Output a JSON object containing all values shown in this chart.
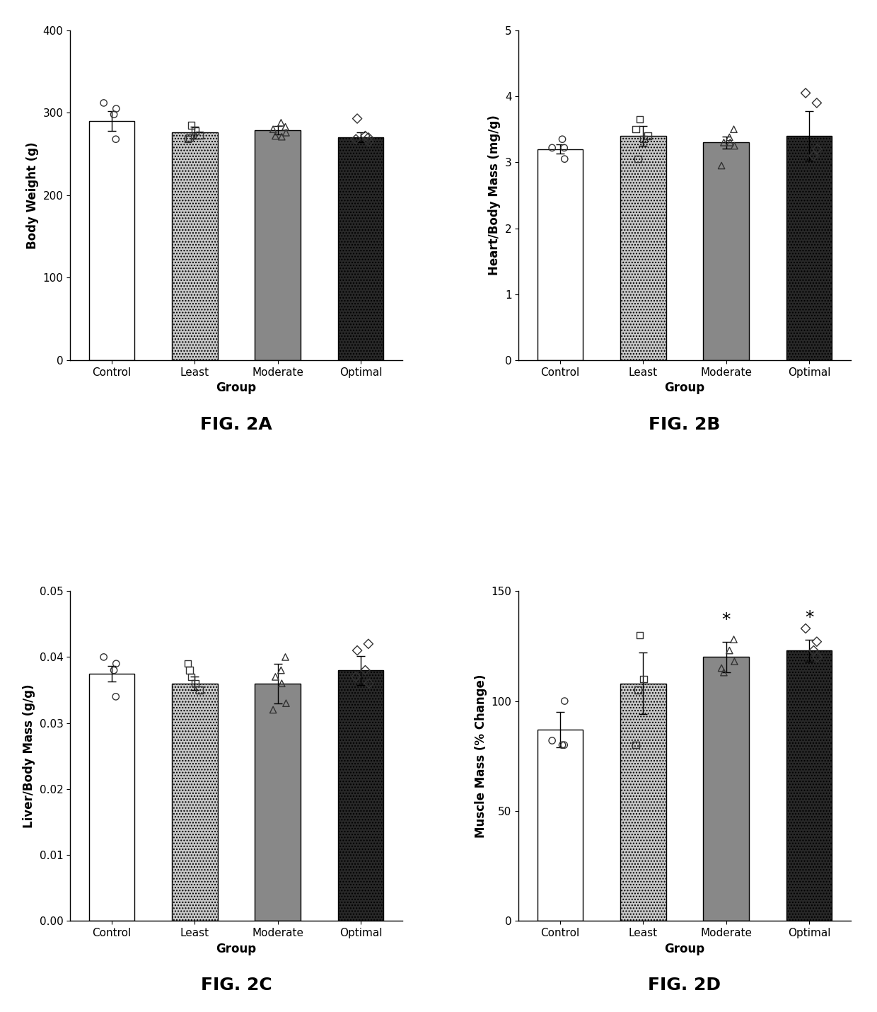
{
  "fig2a": {
    "ylabel": "Body Weight (g)",
    "xlabel": "Group",
    "categories": [
      "Control",
      "Least",
      "Moderate",
      "Optimal"
    ],
    "bar_means": [
      290,
      276,
      279,
      270
    ],
    "bar_sems": [
      12,
      7,
      5,
      6
    ],
    "ylim": [
      0,
      400
    ],
    "yticks": [
      0,
      100,
      200,
      300,
      400
    ],
    "scatter_data": {
      "Control": [
        305,
        312,
        298,
        268
      ],
      "Least": [
        285,
        278,
        270,
        268,
        273
      ],
      "Moderate": [
        283,
        288,
        276,
        280,
        272,
        271
      ],
      "Optimal": [
        293,
        270,
        272,
        265,
        268
      ]
    }
  },
  "fig2b": {
    "ylabel": "Heart/Body Mass (mg/g)",
    "xlabel": "Group",
    "categories": [
      "Control",
      "Least",
      "Moderate",
      "Optimal"
    ],
    "bar_means": [
      3.2,
      3.4,
      3.3,
      3.4
    ],
    "bar_sems": [
      0.07,
      0.15,
      0.09,
      0.38
    ],
    "ylim": [
      0,
      5
    ],
    "yticks": [
      0,
      1,
      2,
      3,
      4,
      5
    ],
    "scatter_data": {
      "Control": [
        3.05,
        3.22,
        3.35,
        3.22
      ],
      "Least": [
        3.65,
        3.35,
        3.05,
        3.5,
        3.4
      ],
      "Moderate": [
        3.5,
        3.38,
        3.25,
        2.95,
        3.3,
        3.3
      ],
      "Optimal": [
        4.05,
        3.9,
        3.1,
        3.2
      ]
    }
  },
  "fig2c": {
    "ylabel": "Liver/Body Mass (g/g)",
    "xlabel": "Group",
    "categories": [
      "Control",
      "Least",
      "Moderate",
      "Optimal"
    ],
    "bar_means": [
      0.0375,
      0.036,
      0.036,
      0.038
    ],
    "bar_sems": [
      0.0012,
      0.001,
      0.003,
      0.0022
    ],
    "ylim": [
      0.0,
      0.05
    ],
    "yticks": [
      0.0,
      0.01,
      0.02,
      0.03,
      0.04,
      0.05
    ],
    "scatter_data": {
      "Control": [
        0.039,
        0.04,
        0.038,
        0.034
      ],
      "Least": [
        0.037,
        0.036,
        0.038,
        0.039,
        0.035
      ],
      "Moderate": [
        0.04,
        0.038,
        0.033,
        0.032,
        0.037,
        0.036
      ],
      "Optimal": [
        0.041,
        0.042,
        0.038,
        0.036,
        0.037
      ]
    }
  },
  "fig2d": {
    "ylabel": "Muscle Mass (% Change)",
    "xlabel": "Group",
    "categories": [
      "Control",
      "Least",
      "Moderate",
      "Optimal"
    ],
    "bar_means": [
      87,
      108,
      120,
      123
    ],
    "bar_sems": [
      8,
      14,
      7,
      5
    ],
    "ylim": [
      0,
      150
    ],
    "yticks": [
      0,
      50,
      100,
      150
    ],
    "significance": [
      "",
      "",
      "*",
      "*"
    ],
    "scatter_data": {
      "Control": [
        100,
        82,
        80,
        80
      ],
      "Least": [
        130,
        110,
        105,
        80
      ],
      "Moderate": [
        128,
        123,
        118,
        115,
        113
      ],
      "Optimal": [
        133,
        127,
        123,
        120
      ]
    }
  },
  "bar_colors": [
    "#ffffff",
    "#c8c8c8",
    "#888888",
    "#282828"
  ],
  "bar_hatches": [
    null,
    "....",
    null,
    "...."
  ],
  "bar_edge_color": "#000000",
  "scatter_markers": [
    "o",
    "s",
    "^",
    "D"
  ],
  "scatter_size": 45,
  "bar_width": 0.55,
  "fig_label_fontsize": 18,
  "label_fontsize": 12,
  "tick_fontsize": 11,
  "sig_fontsize": 18
}
